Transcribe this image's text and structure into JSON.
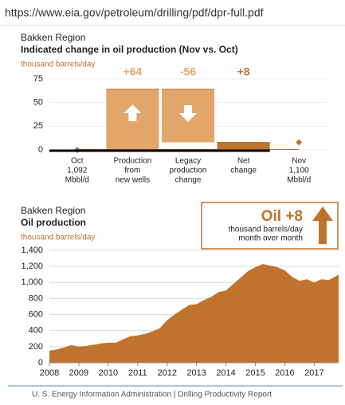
{
  "url": "https://www.eia.gov/petroleum/drilling/pdf/dpr-full.pdf",
  "footer": "U. S. Energy Information Administration  |  Drilling Productivity Report",
  "chart_data": [
    {
      "type": "waterfall",
      "title": "Bakken Region",
      "subtitle": "Indicated change in oil production (Nov vs. Oct)",
      "ylabel": "thousand barrels/day",
      "categories": [
        [
          "Oct",
          "1,092",
          "Mbbl/d"
        ],
        [
          "Production",
          "from",
          "new wells"
        ],
        [
          "Legacy",
          "production",
          "change"
        ],
        [
          "Net",
          "change"
        ],
        [
          "Nov",
          "1,100",
          "Mbbl/d"
        ]
      ],
      "values": [
        0,
        64,
        -56,
        8,
        8
      ],
      "value_labels": [
        null,
        "+64",
        "-56",
        "+8",
        null
      ],
      "measure": [
        "absolute",
        "relative",
        "relative",
        "total",
        "absolute"
      ],
      "color": "#e2a66a",
      "total_color": "#c0732e",
      "ylim": [
        0,
        75
      ],
      "yticks": [
        0,
        25,
        50,
        75
      ],
      "grid": true
    },
    {
      "type": "area",
      "title": "Bakken Region",
      "subtitle": "Oil production",
      "ylabel": "thousand barrels/day",
      "annotation": {
        "title": "Oil +8",
        "lines": [
          "thousand barrels/day",
          "month over month"
        ]
      },
      "x": [
        2008,
        2008.25,
        2008.5,
        2008.75,
        2009,
        2009.25,
        2009.5,
        2009.75,
        2010,
        2010.25,
        2010.5,
        2010.75,
        2011,
        2011.25,
        2011.5,
        2011.75,
        2012,
        2012.25,
        2012.5,
        2012.75,
        2013,
        2013.25,
        2013.5,
        2013.75,
        2014,
        2014.25,
        2014.5,
        2014.75,
        2015,
        2015.25,
        2015.5,
        2015.75,
        2016,
        2016.25,
        2016.5,
        2016.75,
        2017,
        2017.25,
        2017.5,
        2017.75,
        2017.83
      ],
      "values": [
        150,
        165,
        190,
        220,
        200,
        210,
        225,
        240,
        250,
        250,
        290,
        330,
        340,
        360,
        390,
        430,
        530,
        600,
        660,
        720,
        730,
        780,
        820,
        880,
        900,
        980,
        1060,
        1140,
        1190,
        1230,
        1210,
        1190,
        1150,
        1070,
        1020,
        1040,
        1000,
        1040,
        1030,
        1080,
        1100
      ],
      "color": "#c0732e",
      "xlim": [
        2008,
        2017.83
      ],
      "xticks": [
        2008,
        2009,
        2010,
        2011,
        2012,
        2013,
        2014,
        2015,
        2016,
        2017
      ],
      "ylim": [
        0,
        1400
      ],
      "yticks": [
        0,
        200,
        400,
        600,
        800,
        {
          "value": 1000,
          "label": "1,000"
        },
        {
          "value": 1200,
          "label": "1,200"
        },
        {
          "value": 1400,
          "label": "1,400"
        }
      ],
      "grid": true
    }
  ]
}
